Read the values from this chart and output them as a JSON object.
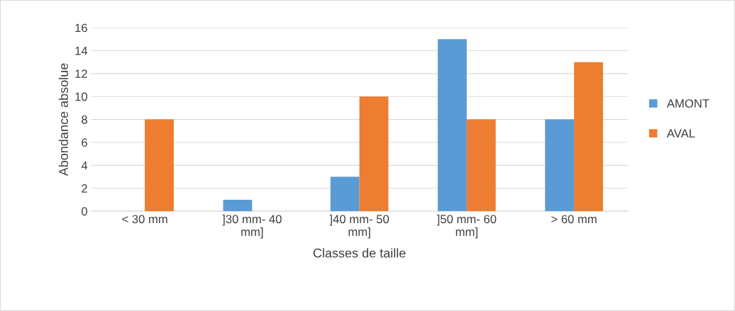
{
  "chart_data": {
    "type": "bar",
    "xlabel": "Classes de taille",
    "ylabel": "Abondance absolue",
    "categories": [
      "< 30 mm",
      "]30 mm- 40 mm]",
      "]40 mm- 50 mm]",
      "]50 mm- 60 mm]",
      "> 60 mm"
    ],
    "series": [
      {
        "name": "AMONT",
        "color": "#5b9bd5",
        "values": [
          0,
          1,
          3,
          15,
          8
        ]
      },
      {
        "name": "AVAL",
        "color": "#ed7d31",
        "values": [
          8,
          0,
          10,
          8,
          13
        ]
      }
    ],
    "ylim": [
      0,
      16
    ],
    "yticks": [
      0,
      2,
      4,
      6,
      8,
      10,
      12,
      14,
      16
    ],
    "grid": "y",
    "legend": "right"
  }
}
